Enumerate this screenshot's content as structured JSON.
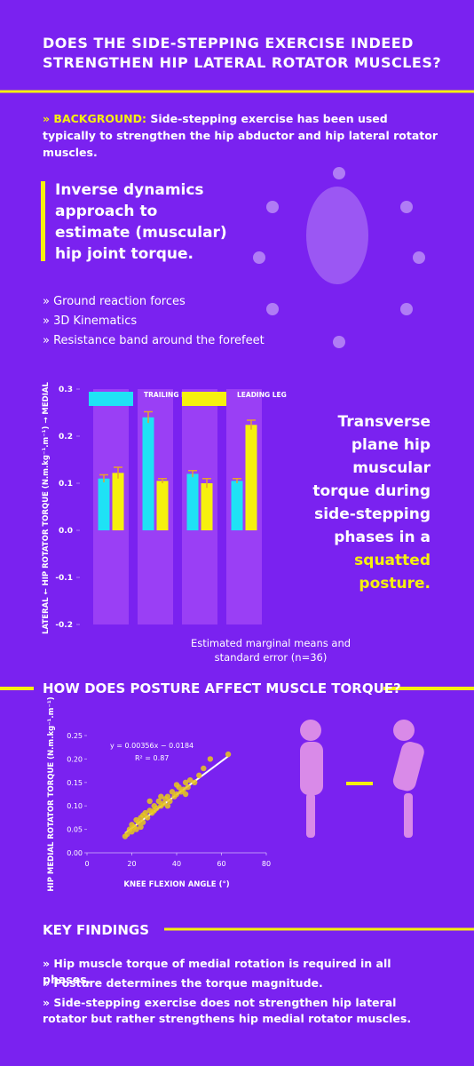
{
  "header": {
    "title": "DOES THE SIDE-STEPPING EXERCISE INDEED STRENGTHEN HIP LATERAL ROTATOR MUSCLES?"
  },
  "background": {
    "label": "» BACKGROUND:",
    "text": "Side-stepping exercise has been used typically to strengthen the hip abductor and hip lateral rotator muscles."
  },
  "method": {
    "heading": "Inverse dynamics approach to estimate (muscular) hip joint torque.",
    "items": [
      "» Ground reaction forces",
      "» 3D Kinematics",
      "» Resistance band around the forefeet"
    ]
  },
  "side_text": {
    "text": "Transverse plane hip muscular torque during side-stepping phases in a",
    "highlight": "squatted posture."
  },
  "posture": {
    "heading": "HOW DOES POSTURE AFFECT MUSCLE TORQUE?"
  },
  "key_findings": {
    "heading": "KEY FINDINGS",
    "items": [
      "» Hip muscle torque of medial rotation is required in all phases.",
      "» Posture determines the torque magnitude.",
      "» Side-stepping exercise does not strengthen hip lateral rotator but rather strengthens hip medial rotator muscles."
    ]
  },
  "chart_data": [
    {
      "type": "bar",
      "y_label": "LATERAL ← HIP ROTATOR TORQUE (N.m.kg⁻¹.m⁻¹) → MEDIAL",
      "caption": "Estimated marginal means and standard error (n=36)",
      "series": [
        {
          "name": "TRAILING LEG",
          "color": "#1fe2f5",
          "values": [
            0.11,
            0.24,
            0.12,
            0.105
          ],
          "errors": [
            0.008,
            0.012,
            0.007,
            0.005
          ]
        },
        {
          "name": "LEADING LEG",
          "color": "#f6f00e",
          "values": [
            0.122,
            0.105,
            0.1,
            0.224
          ],
          "errors": [
            0.012,
            0.005,
            0.01,
            0.01
          ]
        }
      ],
      "ylim": [
        -0.2,
        0.3
      ],
      "yticks": [
        0.3,
        0.2,
        0.1,
        {
          "value": 0,
          "label": "0.0"
        },
        -0.1,
        -0.2
      ]
    },
    {
      "type": "scatter",
      "x_label": "KNEE FLEXION ANGLE (°)",
      "y_label": "HIP MEDIAL ROTATOR TORQUE (N.m.kg⁻¹.m⁻¹)",
      "color": "#e8c81c",
      "x": [
        17,
        18,
        19,
        20,
        20,
        21,
        22,
        22,
        23,
        24,
        25,
        25,
        26,
        27,
        28,
        29,
        30,
        30,
        31,
        32,
        33,
        34,
        35,
        36,
        37,
        38,
        39,
        40,
        41,
        42,
        43,
        44,
        45,
        46,
        48,
        50,
        52,
        55,
        63,
        28,
        36,
        40,
        44,
        24,
        33
      ],
      "values": [
        0.035,
        0.04,
        0.05,
        0.045,
        0.06,
        0.055,
        0.07,
        0.05,
        0.065,
        0.075,
        0.08,
        0.065,
        0.085,
        0.075,
        0.09,
        0.085,
        0.1,
        0.09,
        0.095,
        0.11,
        0.1,
        0.105,
        0.115,
        0.12,
        0.11,
        0.13,
        0.12,
        0.125,
        0.14,
        0.13,
        0.135,
        0.15,
        0.14,
        0.155,
        0.15,
        0.165,
        0.18,
        0.2,
        0.21,
        0.11,
        0.1,
        0.145,
        0.125,
        0.055,
        0.12
      ],
      "fit": {
        "label": "y = 0.00356x − 0.0184",
        "slope": 0.00356,
        "intercept": -0.0184,
        "r2_label": "R² = 0.87"
      },
      "xlim": [
        0,
        80
      ],
      "xticks": [
        0,
        20,
        40,
        60,
        80
      ],
      "ylim": [
        0,
        0.25
      ],
      "yticks": [
        {
          "value": 0,
          "label": "0.00"
        },
        {
          "value": 0.05,
          "label": "0.05"
        },
        {
          "value": 0.1,
          "label": "0.10"
        },
        {
          "value": 0.15,
          "label": "0.15"
        },
        {
          "value": 0.2,
          "label": "0.20"
        },
        {
          "value": 0.25,
          "label": "0.25"
        }
      ]
    }
  ]
}
